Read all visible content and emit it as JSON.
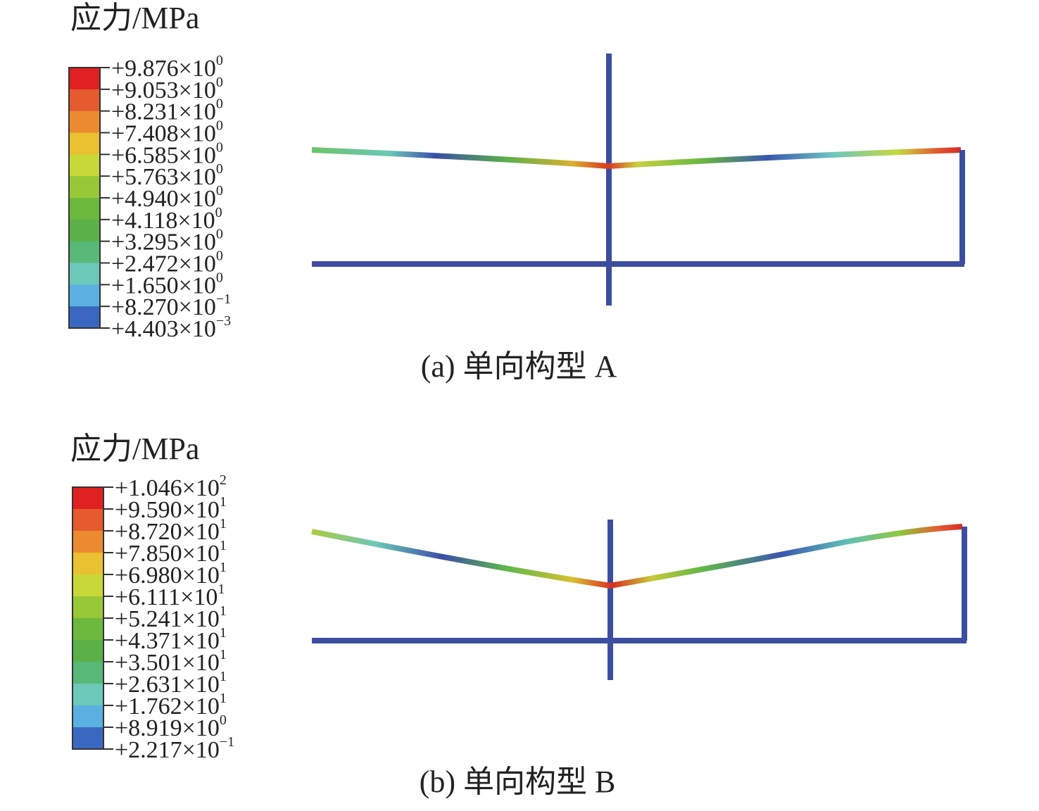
{
  "panels": [
    {
      "legend_title": "应力/MPa",
      "legend_labels": [
        {
          "base": "+9.876×10",
          "exp": "0"
        },
        {
          "base": "+9.053×10",
          "exp": "0"
        },
        {
          "base": "+8.231×10",
          "exp": "0"
        },
        {
          "base": "+7.408×10",
          "exp": "0"
        },
        {
          "base": "+6.585×10",
          "exp": "0"
        },
        {
          "base": "+5.763×10",
          "exp": "0"
        },
        {
          "base": "+4.940×10",
          "exp": "0"
        },
        {
          "base": "+4.118×10",
          "exp": "0"
        },
        {
          "base": "+3.295×10",
          "exp": "0"
        },
        {
          "base": "+2.472×10",
          "exp": "0"
        },
        {
          "base": "+1.650×10",
          "exp": "0"
        },
        {
          "base": "+8.270×10",
          "exp": "−1"
        },
        {
          "base": "+4.403×10",
          "exp": "−3"
        }
      ],
      "caption": "(a) 单向构型 A"
    },
    {
      "legend_title": "应力/MPa",
      "legend_labels": [
        {
          "base": "+1.046×10",
          "exp": "2"
        },
        {
          "base": "+9.590×10",
          "exp": "1"
        },
        {
          "base": "+8.720×10",
          "exp": "1"
        },
        {
          "base": "+7.850×10",
          "exp": "1"
        },
        {
          "base": "+6.980×10",
          "exp": "1"
        },
        {
          "base": "+6.111×10",
          "exp": "1"
        },
        {
          "base": "+5.241×10",
          "exp": "1"
        },
        {
          "base": "+4.371×10",
          "exp": "1"
        },
        {
          "base": "+3.501×10",
          "exp": "1"
        },
        {
          "base": "+2.631×10",
          "exp": "1"
        },
        {
          "base": "+1.762×10",
          "exp": "1"
        },
        {
          "base": "+8.919×10",
          "exp": "0"
        },
        {
          "base": "+2.217×10",
          "exp": "−1"
        }
      ],
      "caption": "(b) 单向构型 B"
    }
  ]
}
